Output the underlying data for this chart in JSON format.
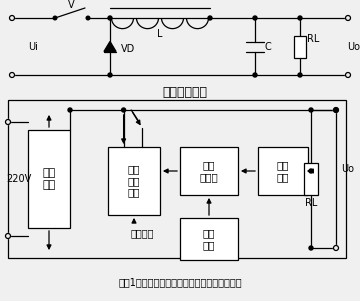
{
  "bg": "#f0f0f0",
  "title": "图（1）开关稳压电源的原理图及等效原理框图",
  "switch_label": "开关调整元件",
  "v_label": "V",
  "ui_label": "Ui",
  "vd_label": "VD",
  "l_label": "L",
  "c_label": "C",
  "rl1_label": "RL",
  "uo1_label": "Uo",
  "v220_label": "220V",
  "box1": "整流\n电路",
  "box2": "脉冲\n调宽\n电路",
  "box3": "比较\n放大器",
  "box4": "取样\n电路",
  "box5": "基准\n电路",
  "pulse_label": "开关脉冲",
  "rl2_label": "RL",
  "uo2_label": "Uo",
  "lw": 0.9
}
